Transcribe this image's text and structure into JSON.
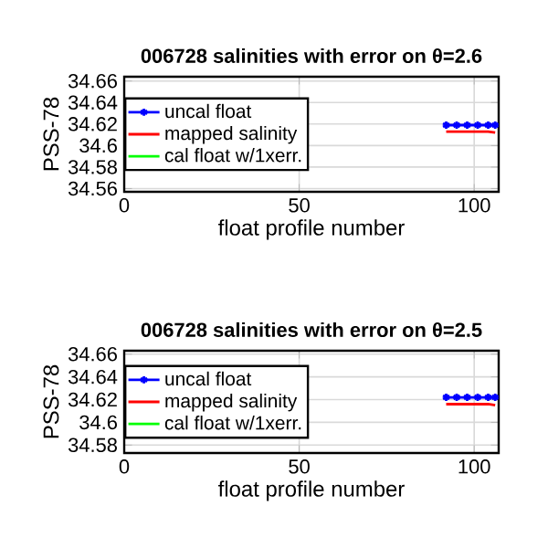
{
  "chart_data": [
    {
      "type": "line",
      "title": "006728 salinities with error on θ=2.6",
      "xlabel": "float profile number",
      "ylabel": "PSS-78",
      "x": [
        92,
        95,
        98,
        101,
        104,
        106
      ],
      "series": [
        {
          "name": "uncal float",
          "color": "#0000ff",
          "marker": "cross",
          "values": [
            34.619,
            34.619,
            34.619,
            34.619,
            34.619,
            34.619
          ]
        },
        {
          "name": "mapped salinity",
          "color": "#ff0000",
          "values": [
            34.613,
            34.613,
            34.613,
            34.613,
            34.613,
            34.612
          ]
        },
        {
          "name": "cal float w/1xerr.",
          "color": "#00ff00",
          "values": [
            null,
            null,
            null,
            null,
            null,
            null
          ]
        }
      ],
      "xlim": [
        0,
        107
      ],
      "ylim": [
        34.557,
        34.664
      ],
      "xticks": [
        0,
        50,
        100
      ],
      "yticks": [
        34.56,
        34.58,
        34.6,
        34.62,
        34.64,
        34.66
      ],
      "grid": true,
      "legend": "top left"
    },
    {
      "type": "line",
      "title": "006728 salinities with error on θ=2.5",
      "xlabel": "float profile number",
      "ylabel": "PSS-78",
      "x": [
        92,
        95,
        98,
        101,
        104,
        106
      ],
      "series": [
        {
          "name": "uncal float",
          "color": "#0000ff",
          "marker": "cross",
          "values": [
            34.622,
            34.622,
            34.622,
            34.622,
            34.622,
            34.622
          ]
        },
        {
          "name": "mapped salinity",
          "color": "#ff0000",
          "values": [
            34.616,
            34.616,
            34.616,
            34.616,
            34.616,
            34.615
          ]
        },
        {
          "name": "cal float w/1xerr.",
          "color": "#00ff00",
          "values": [
            null,
            null,
            null,
            null,
            null,
            null
          ]
        }
      ],
      "xlim": [
        0,
        107
      ],
      "ylim": [
        34.573,
        34.663
      ],
      "xticks": [
        0,
        50,
        100
      ],
      "yticks": [
        34.58,
        34.6,
        34.62,
        34.64,
        34.66
      ],
      "grid": true,
      "legend": "top left"
    }
  ]
}
